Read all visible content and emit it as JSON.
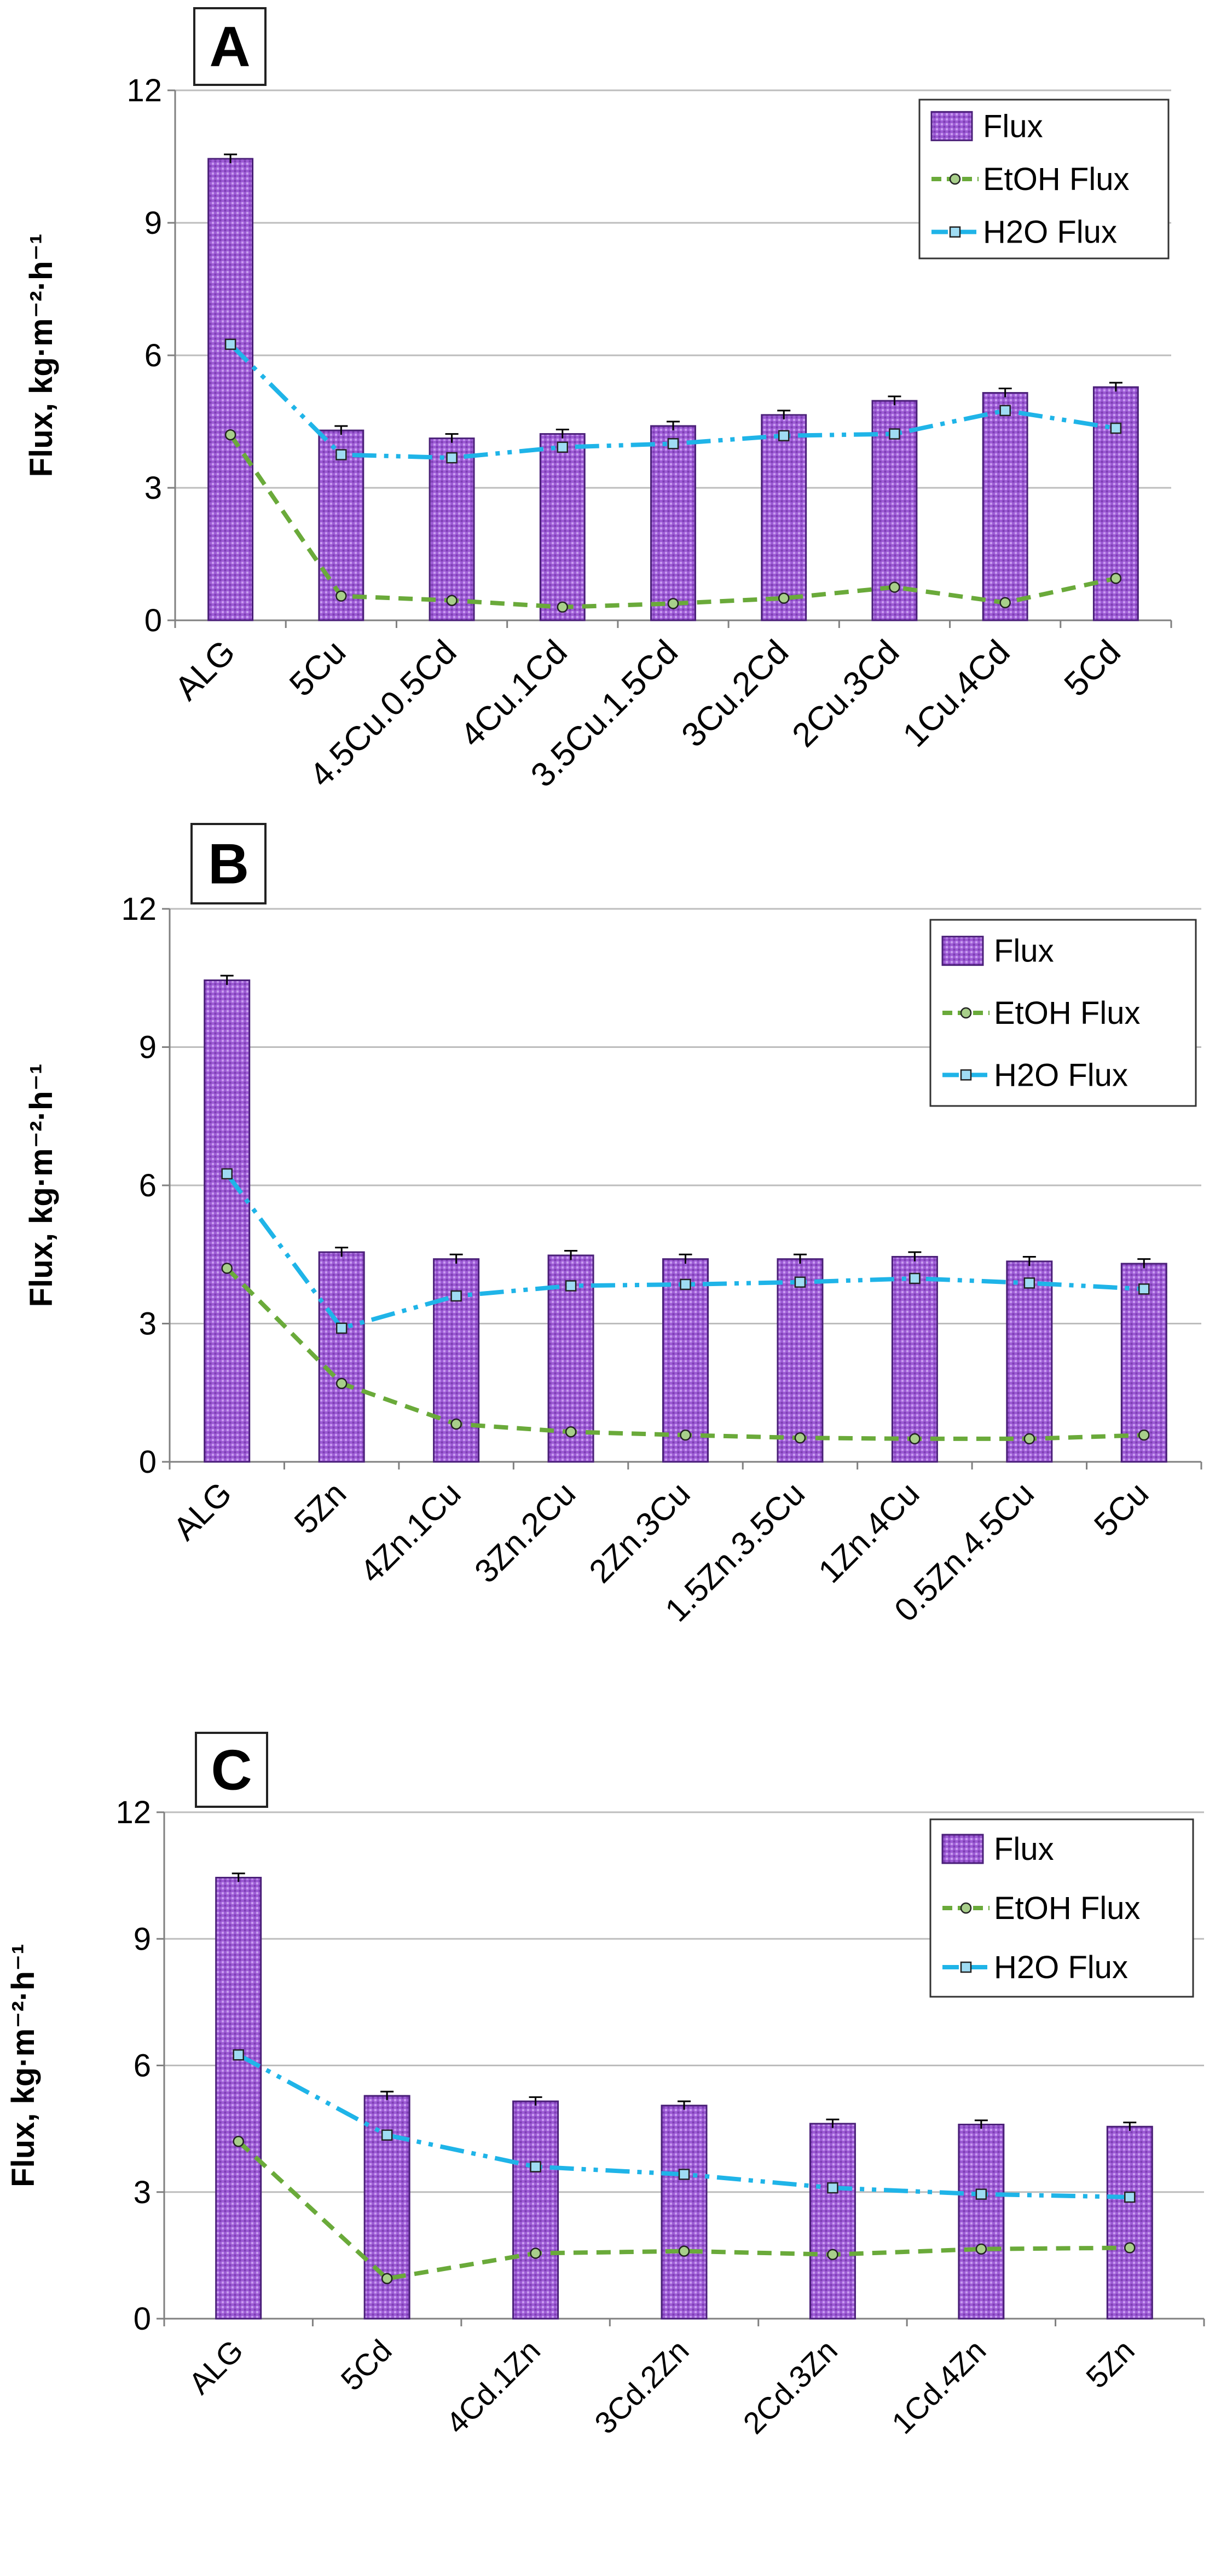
{
  "colors": {
    "bar_fill": "#9e5cd6",
    "bar_stroke": "#4a1f78",
    "etoh_line": "#6aaa3a",
    "h2o_line": "#1fb4e8",
    "grid": "#bdbdbd",
    "axis": "#808080"
  },
  "chart_data": [
    {
      "type": "bar",
      "panel_label": "A",
      "ylabel": "Flux, kg·m⁻²·h⁻¹",
      "ylim": [
        0,
        12
      ],
      "yticks": [
        0,
        3,
        6,
        9,
        12
      ],
      "grid": true,
      "legend_position": "top-right",
      "categories": [
        "ALG",
        "5Cu",
        "4.5Cu.0.5Cd",
        "4Cu.1Cd",
        "3.5Cu.1.5Cd",
        "3Cu.2Cd",
        "2Cu.3Cd",
        "1Cu.4Cd",
        "5Cd"
      ],
      "series": [
        {
          "name": "Flux",
          "kind": "bar",
          "values": [
            10.45,
            4.3,
            4.12,
            4.22,
            4.4,
            4.65,
            4.97,
            5.15,
            5.28
          ],
          "errors": [
            0.1,
            0.1,
            0.1,
            0.1,
            0.1,
            0.1,
            0.1,
            0.1,
            0.1
          ]
        },
        {
          "name": "EtOH Flux",
          "kind": "line",
          "values": [
            4.2,
            0.55,
            0.45,
            0.3,
            0.38,
            0.5,
            0.75,
            0.4,
            0.95
          ]
        },
        {
          "name": "H2O Flux",
          "kind": "line",
          "values": [
            6.25,
            3.75,
            3.68,
            3.92,
            4.0,
            4.18,
            4.22,
            4.75,
            4.35
          ]
        }
      ]
    },
    {
      "type": "bar",
      "panel_label": "B",
      "ylabel": "Flux, kg·m⁻²·h⁻¹",
      "ylim": [
        0,
        12
      ],
      "yticks": [
        0,
        3,
        6,
        9,
        12
      ],
      "grid": true,
      "legend_position": "top-right",
      "categories": [
        "ALG",
        "5Zn",
        "4Zn.1Cu",
        "3Zn.2Cu",
        "2Zn.3Cu",
        "1.5Zn.3.5Cu",
        "1Zn.4Cu",
        "0.5Zn.4.5Cu",
        "5Cu"
      ],
      "series": [
        {
          "name": "Flux",
          "kind": "bar",
          "values": [
            10.45,
            4.55,
            4.4,
            4.48,
            4.4,
            4.4,
            4.45,
            4.35,
            4.3
          ],
          "errors": [
            0.1,
            0.1,
            0.1,
            0.1,
            0.1,
            0.1,
            0.1,
            0.1,
            0.1
          ]
        },
        {
          "name": "EtOH Flux",
          "kind": "line",
          "values": [
            4.2,
            1.7,
            0.82,
            0.65,
            0.58,
            0.52,
            0.5,
            0.5,
            0.58
          ]
        },
        {
          "name": "H2O Flux",
          "kind": "line",
          "values": [
            6.25,
            2.9,
            3.6,
            3.82,
            3.85,
            3.9,
            3.98,
            3.88,
            3.75
          ]
        }
      ]
    },
    {
      "type": "bar",
      "panel_label": "C",
      "ylabel": "Flux, kg·m⁻²·h⁻¹",
      "ylim": [
        0,
        12
      ],
      "yticks": [
        0,
        3,
        6,
        9,
        12
      ],
      "grid": true,
      "legend_position": "top-right",
      "categories": [
        "ALG",
        "5Cd",
        "4Cd.1Zn",
        "3Cd.2Zn",
        "2Cd.3Zn",
        "1Cd.4Zn",
        "5Zn"
      ],
      "series": [
        {
          "name": "Flux",
          "kind": "bar",
          "values": [
            10.45,
            5.28,
            5.15,
            5.05,
            4.62,
            4.6,
            4.55
          ],
          "errors": [
            0.1,
            0.1,
            0.1,
            0.1,
            0.1,
            0.1,
            0.1
          ]
        },
        {
          "name": "EtOH Flux",
          "kind": "line",
          "values": [
            4.2,
            0.95,
            1.55,
            1.6,
            1.52,
            1.65,
            1.68
          ]
        },
        {
          "name": "H2O Flux",
          "kind": "line",
          "values": [
            6.25,
            4.35,
            3.6,
            3.42,
            3.1,
            2.95,
            2.88
          ]
        }
      ]
    }
  ]
}
